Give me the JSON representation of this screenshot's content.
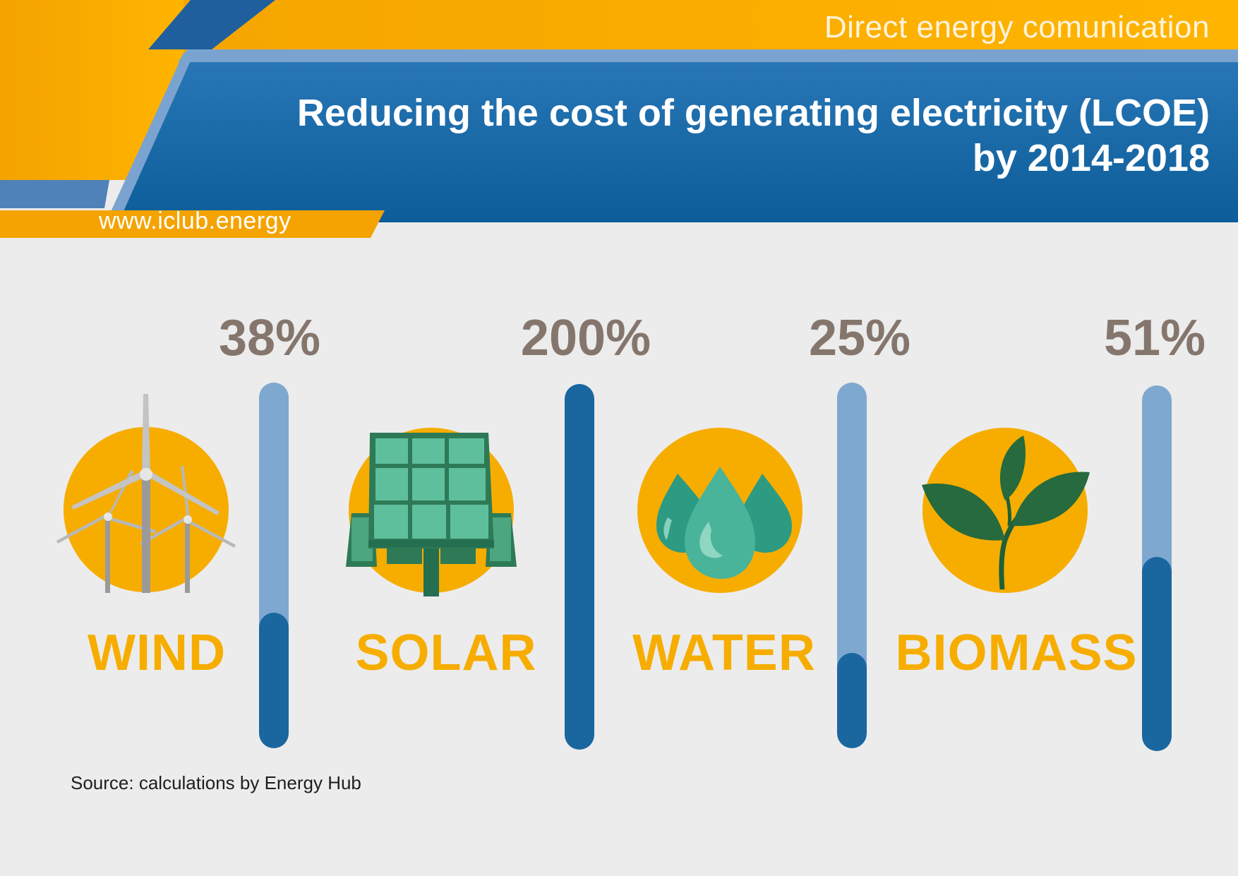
{
  "header": {
    "tagline": "Direct energy comunication",
    "title_line1": "Reducing the cost of generating electricity (LCOE)",
    "title_line2": "by 2014-2018",
    "website": "www.iclub.energy"
  },
  "colors": {
    "orange": "#f6ad00",
    "blue_dark": "#1a679f",
    "blue_light": "#7fa8d1",
    "value_text": "#85766d",
    "background": "#ececec"
  },
  "chart_data": {
    "type": "bar",
    "categories": [
      "WIND",
      "SOLAR",
      "WATER",
      "BIOMASS"
    ],
    "values": [
      "38%",
      "200%",
      "25%",
      "51%"
    ],
    "fill_fraction": [
      0.37,
      1.0,
      0.26,
      0.53
    ],
    "icons": [
      "wind-turbine-icon",
      "solar-panel-icon",
      "water-drops-icon",
      "leaf-icon"
    ]
  },
  "footer": {
    "source": "Source:  calculations by Energy Hub"
  }
}
